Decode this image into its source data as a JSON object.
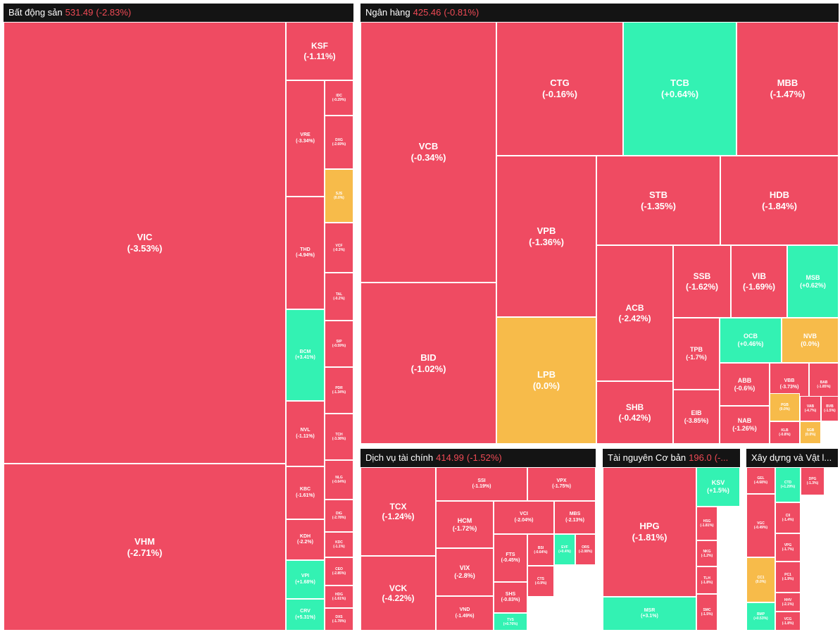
{
  "colors": {
    "down": "#ef4b62",
    "up": "#33f2b3",
    "flat": "#f7bb4a",
    "ceiling": "#d27ef0",
    "header_bg": "#141414",
    "header_value": "#f04a55"
  },
  "chart_data": {
    "type": "treemap",
    "sectors": [
      {
        "name": "Bất động sản",
        "value": "531.49",
        "change": "(-2.83%)",
        "tiles": [
          {
            "s": "VIC",
            "c": "(-3.53%)",
            "k": "down"
          },
          {
            "s": "VHM",
            "c": "(-2.71%)",
            "k": "down"
          },
          {
            "s": "KSF",
            "c": "(-1.11%)",
            "k": "down"
          },
          {
            "s": "VRE",
            "c": "(-3.34%)",
            "k": "down"
          },
          {
            "s": "THD",
            "c": "(-4.94%)",
            "k": "down"
          },
          {
            "s": "BCM",
            "c": "(+3.41%)",
            "k": "up"
          },
          {
            "s": "NVL",
            "c": "(-1.11%)",
            "k": "down"
          },
          {
            "s": "KBC",
            "c": "(-1.61%)",
            "k": "down"
          },
          {
            "s": "KDH",
            "c": "(-2.2%)",
            "k": "down"
          },
          {
            "s": "VPI",
            "c": "(+1.68%)",
            "k": "up"
          },
          {
            "s": "CRV",
            "c": "(+5.31%)",
            "k": "up"
          },
          {
            "s": "IDC",
            "c": "(-0.29%)",
            "k": "down"
          },
          {
            "s": "DXG",
            "c": "(-2.69%)",
            "k": "down"
          },
          {
            "s": "SJS",
            "c": "(0.0%)",
            "k": "flat"
          },
          {
            "s": "VCF",
            "c": "(-0.3%)",
            "k": "down"
          },
          {
            "s": "TAL",
            "c": "(-0.2%)",
            "k": "down"
          },
          {
            "s": "SIP",
            "c": "(-0.59%)",
            "k": "down"
          },
          {
            "s": "PDR",
            "c": "(-1.34%)",
            "k": "down"
          },
          {
            "s": "TCH",
            "c": "(-3.38%)",
            "k": "down"
          },
          {
            "s": "NLG",
            "c": "(-0.64%)",
            "k": "down"
          },
          {
            "s": "DIG",
            "c": "(-2.78%)",
            "k": "down"
          },
          {
            "s": "KDC",
            "c": "(-1.1%)",
            "k": "down"
          },
          {
            "s": "CEO",
            "c": "(-2.85%)",
            "k": "down"
          },
          {
            "s": "HDG",
            "c": "(-1.61%)",
            "k": "down"
          },
          {
            "s": "DXS",
            "c": "(-1.78%)",
            "k": "down"
          }
        ]
      },
      {
        "name": "Ngân hàng",
        "value": "425.46",
        "change": "(-0.81%)",
        "tiles": [
          {
            "s": "VCB",
            "c": "(-0.34%)",
            "k": "down"
          },
          {
            "s": "BID",
            "c": "(-1.02%)",
            "k": "down"
          },
          {
            "s": "CTG",
            "c": "(-0.16%)",
            "k": "down"
          },
          {
            "s": "TCB",
            "c": "(+0.64%)",
            "k": "up"
          },
          {
            "s": "MBB",
            "c": "(-1.47%)",
            "k": "down"
          },
          {
            "s": "VPB",
            "c": "(-1.36%)",
            "k": "down"
          },
          {
            "s": "STB",
            "c": "(-1.35%)",
            "k": "down"
          },
          {
            "s": "HDB",
            "c": "(-1.84%)",
            "k": "down"
          },
          {
            "s": "LPB",
            "c": "(0.0%)",
            "k": "flat"
          },
          {
            "s": "ACB",
            "c": "(-2.42%)",
            "k": "down"
          },
          {
            "s": "SSB",
            "c": "(-1.62%)",
            "k": "down"
          },
          {
            "s": "VIB",
            "c": "(-1.69%)",
            "k": "down"
          },
          {
            "s": "MSB",
            "c": "(+0.62%)",
            "k": "up"
          },
          {
            "s": "TPB",
            "c": "(-1.7%)",
            "k": "down"
          },
          {
            "s": "OCB",
            "c": "(+0.46%)",
            "k": "up"
          },
          {
            "s": "NVB",
            "c": "(0.0%)",
            "k": "flat"
          },
          {
            "s": "SHB",
            "c": "(-0.42%)",
            "k": "down"
          },
          {
            "s": "EIB",
            "c": "(-3.85%)",
            "k": "down"
          },
          {
            "s": "ABB",
            "c": "(-0.6%)",
            "k": "down"
          },
          {
            "s": "VBB",
            "c": "(-3.73%)",
            "k": "down"
          },
          {
            "s": "BAB",
            "c": "(-1.85%)",
            "k": "down"
          },
          {
            "s": "NAB",
            "c": "(-1.26%)",
            "k": "down"
          },
          {
            "s": "PGB",
            "c": "(0.0%)",
            "k": "flat"
          },
          {
            "s": "VAB",
            "c": "(-4.7%)",
            "k": "down"
          },
          {
            "s": "KLB",
            "c": "(-0.8%)",
            "k": "down"
          },
          {
            "s": "SGB",
            "c": "(0.0%)",
            "k": "flat"
          },
          {
            "s": "BVB",
            "c": "(-1.5%)",
            "k": "down"
          }
        ]
      },
      {
        "name": "Dịch vụ tài chính",
        "value": "414.99",
        "change": "(-1.52%)",
        "tiles": [
          {
            "s": "TCX",
            "c": "(-1.24%)",
            "k": "down"
          },
          {
            "s": "VCK",
            "c": "(-4.22%)",
            "k": "down"
          },
          {
            "s": "SSI",
            "c": "(-1.19%)",
            "k": "down"
          },
          {
            "s": "VPX",
            "c": "(-1.75%)",
            "k": "down"
          },
          {
            "s": "HCM",
            "c": "(-1.72%)",
            "k": "down"
          },
          {
            "s": "VCI",
            "c": "(-2.04%)",
            "k": "down"
          },
          {
            "s": "MBS",
            "c": "(-2.13%)",
            "k": "down"
          },
          {
            "s": "VIX",
            "c": "(-2.8%)",
            "k": "down"
          },
          {
            "s": "VND",
            "c": "(-1.49%)",
            "k": "down"
          },
          {
            "s": "FTS",
            "c": "(-0.45%)",
            "k": "down"
          },
          {
            "s": "SHS",
            "c": "(-0.83%)",
            "k": "down"
          },
          {
            "s": "TVS",
            "c": "(+0.76%)",
            "k": "up"
          },
          {
            "s": "EVF",
            "c": "(+0.4%)",
            "k": "up"
          },
          {
            "s": "BSI",
            "c": "(-0.64%)",
            "k": "down"
          },
          {
            "s": "CTS",
            "c": "(-0.9%)",
            "k": "down"
          },
          {
            "s": "ORS",
            "c": "(-2.08%)",
            "k": "down"
          }
        ]
      },
      {
        "name": "Tài nguyên Cơ bản",
        "value": "196.0",
        "change": "(-...",
        "tiles": [
          {
            "s": "HPG",
            "c": "(-1.81%)",
            "k": "down"
          },
          {
            "s": "MSR",
            "c": "(+3.1%)",
            "k": "up"
          },
          {
            "s": "KSV",
            "c": "(+1.5%)",
            "k": "up"
          },
          {
            "s": "HSG",
            "c": "(-1.81%)",
            "k": "down"
          },
          {
            "s": "NKG",
            "c": "(-1.2%)",
            "k": "down"
          },
          {
            "s": "TLH",
            "c": "(-1.8%)",
            "k": "down"
          },
          {
            "s": "SMC",
            "c": "(-1.5%)",
            "k": "down"
          }
        ]
      },
      {
        "name": "Xây dựng và Vật l...",
        "value": "",
        "change": "",
        "tiles": [
          {
            "s": "GEL",
            "c": "(-4.68%)",
            "k": "down"
          },
          {
            "s": "VGC",
            "c": "(-0.49%)",
            "k": "down"
          },
          {
            "s": "CC1",
            "c": "(0.0%)",
            "k": "flat"
          },
          {
            "s": "BMP",
            "c": "(+0.53%)",
            "k": "up"
          },
          {
            "s": "CTD",
            "c": "(+1.29%)",
            "k": "up"
          },
          {
            "s": "CII",
            "c": "(-1.4%)",
            "k": "down"
          },
          {
            "s": "VPG",
            "c": "(-1.7%)",
            "k": "down"
          },
          {
            "s": "PC1",
            "c": "(-1.9%)",
            "k": "down"
          },
          {
            "s": "HHV",
            "c": "(-2.1%)",
            "k": "down"
          },
          {
            "s": "VCG",
            "c": "(-1.8%)",
            "k": "down"
          },
          {
            "s": "DPG",
            "c": "(-1.3%)",
            "k": "down"
          }
        ]
      }
    ]
  }
}
